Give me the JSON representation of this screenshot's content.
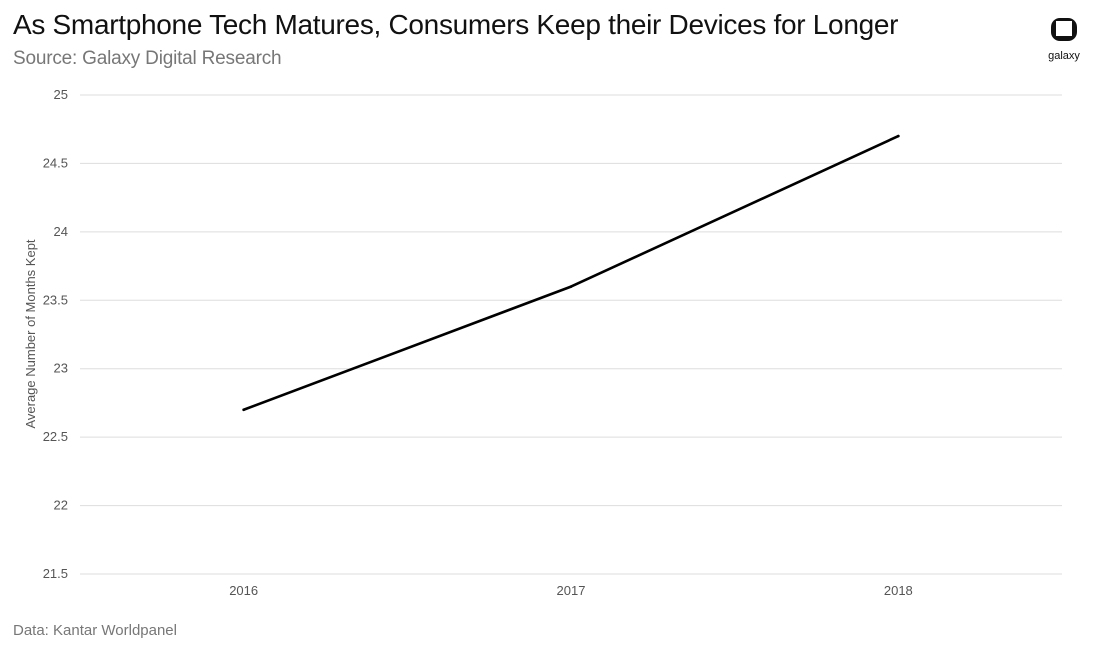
{
  "header": {
    "title": "As Smartphone Tech Matures, Consumers Keep their Devices for Longer",
    "subtitle": "Source: Galaxy Digital Research"
  },
  "logo": {
    "text": "galaxy"
  },
  "footer": {
    "note": "Data: Kantar Worldpanel"
  },
  "colors": {
    "line": "#000000",
    "grid": "#dddddd",
    "text": "#555555"
  },
  "chart_data": {
    "type": "line",
    "title": "As Smartphone Tech Matures, Consumers Keep their Devices for Longer",
    "xlabel": "",
    "ylabel": "Average Number of Months Kept",
    "categories": [
      "2016",
      "2017",
      "2018"
    ],
    "series": [
      {
        "name": "Average Number of Months Kept",
        "values": [
          22.7,
          23.6,
          24.7
        ]
      }
    ],
    "ylim": [
      21.5,
      25
    ],
    "yticks": [
      21.5,
      22,
      22.5,
      23,
      23.5,
      24,
      24.5,
      25
    ],
    "ytick_labels": [
      "21.5",
      "22",
      "22.5",
      "23",
      "23.5",
      "24",
      "24.5",
      "25"
    ],
    "grid": true,
    "legend": "none"
  }
}
